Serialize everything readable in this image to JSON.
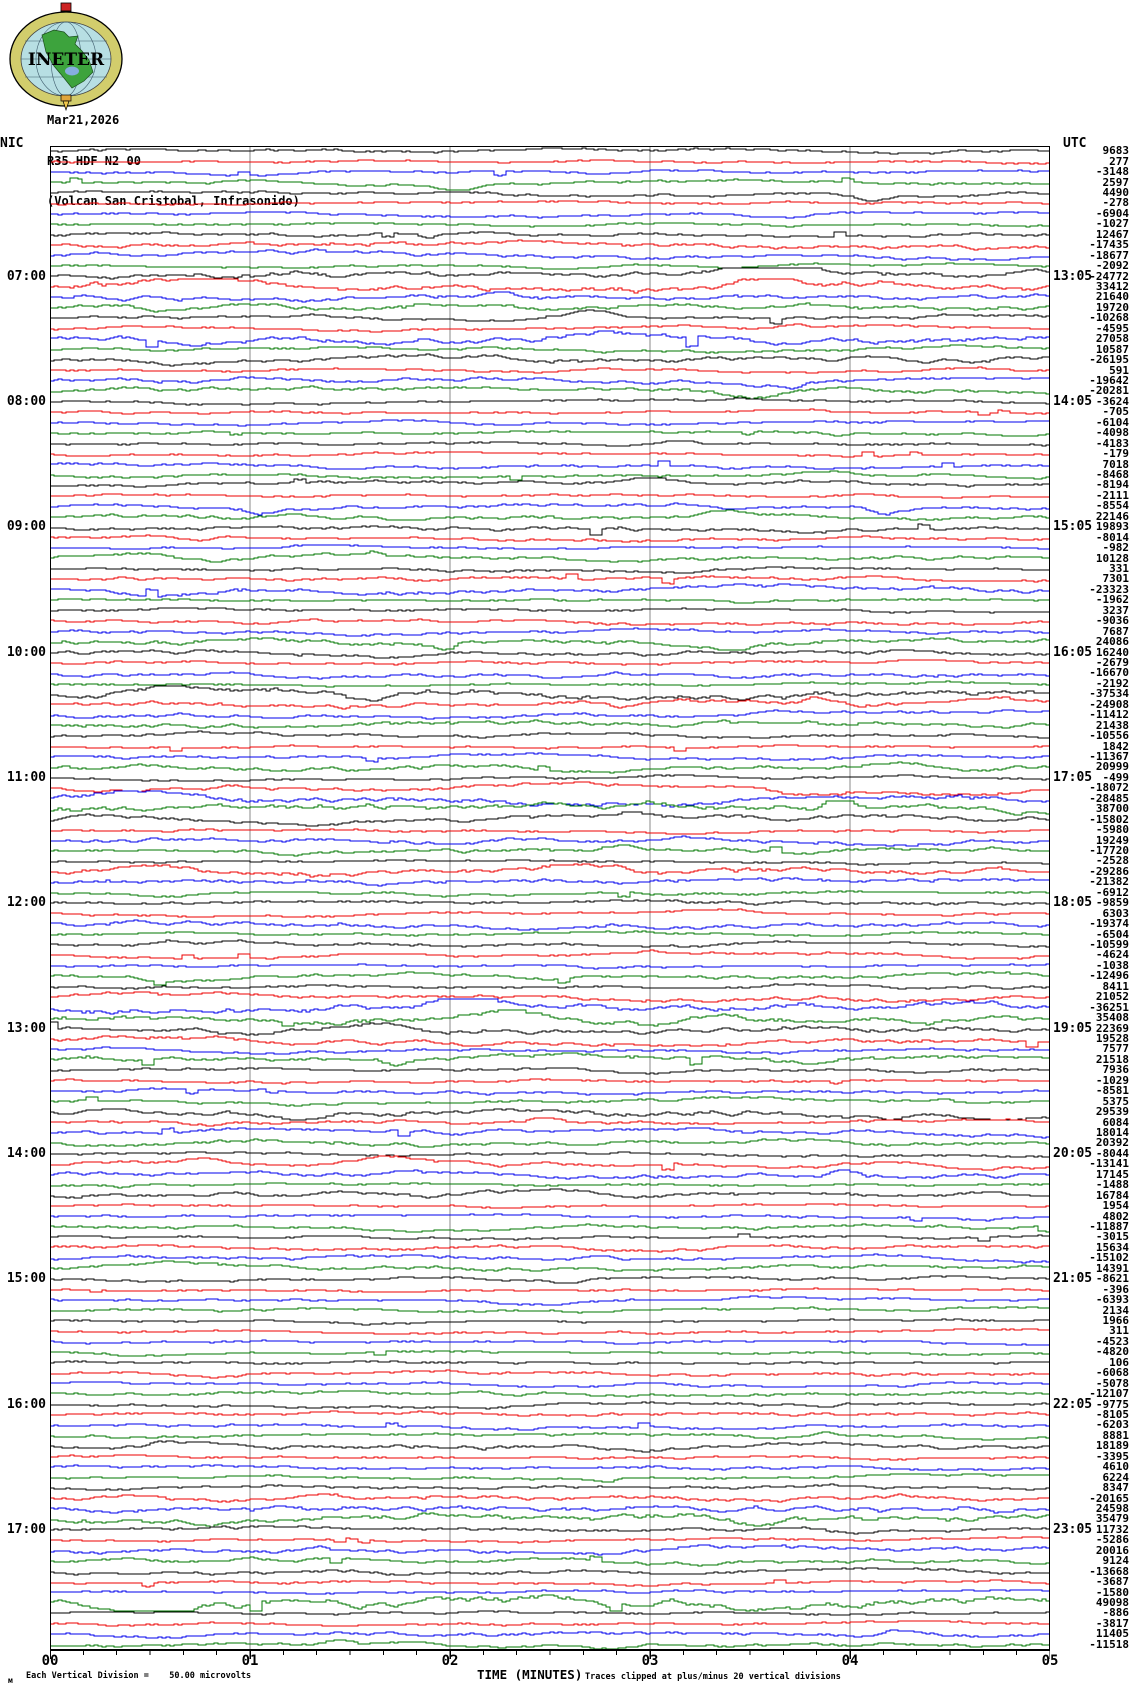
{
  "header": {
    "logo_text": "INETER",
    "date": "Mar21,2026",
    "station": "R35 HDF N2 00",
    "location": "(Volcan San Cristobal, Infrasonido)"
  },
  "side_labels": {
    "left": "NIC",
    "right": "UTC"
  },
  "footer": {
    "left_mark": "м"
  },
  "chart_data": {
    "type": "line",
    "title": "R35 HDF N2 00",
    "subtitle": "(Volcan San Cristobal, Infrasonido)",
    "date": "Mar21,2026",
    "xlabel": "TIME (MINUTES)",
    "x_tick_labels": [
      "00",
      "01",
      "02",
      "03",
      "04",
      "05"
    ],
    "x_range_minutes": [
      0,
      5
    ],
    "minutes_per_row": 5,
    "rows": 144,
    "grid": "vertical gray gridlines at each minute, minor ticks every 10 seconds",
    "trace_color_cycle": [
      "#000000",
      "#ee0000",
      "#0000ee",
      "#007700"
    ],
    "grid_color": "#8a8a8a",
    "scale_note": "Each Vertical Division =    50.00 microvolts",
    "clip_note": "Traces clipped at plus/minus 20 vertical divisions",
    "hour_marks": [
      {
        "row": 13,
        "local": "07:00",
        "utc": "13:05"
      },
      {
        "row": 25,
        "local": "08:00",
        "utc": "14:05"
      },
      {
        "row": 37,
        "local": "09:00",
        "utc": "15:05"
      },
      {
        "row": 49,
        "local": "10:00",
        "utc": "16:05"
      },
      {
        "row": 61,
        "local": "11:00",
        "utc": "17:05"
      },
      {
        "row": 73,
        "local": "12:00",
        "utc": "18:05"
      },
      {
        "row": 85,
        "local": "13:00",
        "utc": "19:05"
      },
      {
        "row": 97,
        "local": "14:00",
        "utc": "20:05"
      },
      {
        "row": 109,
        "local": "15:00",
        "utc": "21:05"
      },
      {
        "row": 121,
        "local": "16:00",
        "utc": "22:05"
      },
      {
        "row": 133,
        "local": "17:00",
        "utc": "23:05"
      }
    ],
    "row_peak_amplitudes": [
      9683,
      277,
      -3148,
      2597,
      4490,
      -278,
      -6904,
      -1027,
      12467,
      -17435,
      -18677,
      -2092,
      -24772,
      33412,
      21640,
      19720,
      -10268,
      -4595,
      27058,
      10587,
      -26195,
      591,
      -19642,
      -20281,
      -3624,
      -705,
      -6104,
      -4098,
      -4183,
      -179,
      7018,
      -8468,
      -8194,
      -2111,
      -8554,
      22146,
      19893,
      -8014,
      -982,
      10128,
      331,
      7301,
      -23323,
      -1962,
      3237,
      -9036,
      7687,
      24086,
      16240,
      -2679,
      -16670,
      -2192,
      -37534,
      -24908,
      -11412,
      21438,
      -10556,
      1842,
      -11367,
      20999,
      -499,
      -18072,
      -28485,
      38700,
      -15802,
      -5980,
      19249,
      -17720,
      -2528,
      -29286,
      -21382,
      -6912,
      -9859,
      6303,
      -19374,
      -6504,
      -10599,
      -4624,
      -1038,
      -12496,
      8411,
      21052,
      -36251,
      35408,
      22369,
      19528,
      7577,
      21518,
      7936,
      -1029,
      -8581,
      5375,
      29539,
      6084,
      18014,
      20392,
      -8044,
      -13141,
      17145,
      -1488,
      16784,
      1954,
      4802,
      -11887,
      -3015,
      15634,
      -15102,
      14391,
      -8621,
      -396,
      -6393,
      2134,
      1966,
      311,
      -4523,
      -4820,
      106,
      -6068,
      -5078,
      -12107,
      -9775,
      -8105,
      -6203,
      8881,
      18189,
      -3395,
      4610,
      6224,
      8347,
      -20165,
      24598,
      35479,
      11732,
      -5286,
      20016,
      9124,
      -13668,
      -3687,
      -1580,
      49098,
      -886,
      -3817,
      11405,
      -11518
    ]
  }
}
